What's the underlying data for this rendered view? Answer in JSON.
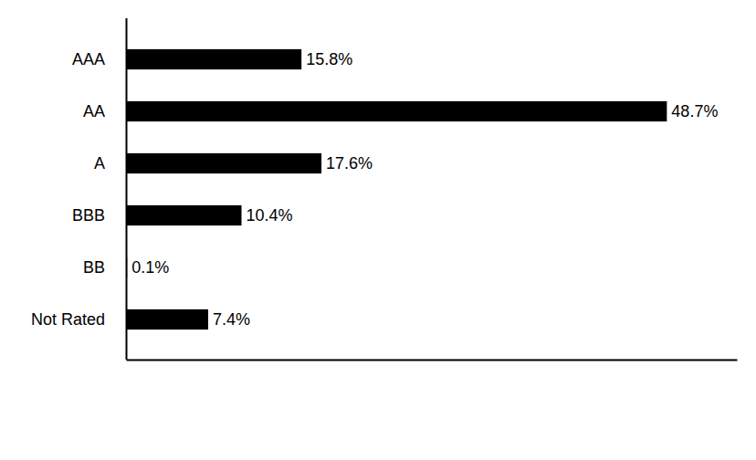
{
  "chart_data": {
    "type": "bar",
    "orientation": "horizontal",
    "categories": [
      "AAA",
      "AA",
      "A",
      "BBB",
      "BB",
      "Not Rated"
    ],
    "values": [
      15.8,
      48.7,
      17.6,
      10.4,
      0.1,
      7.4
    ],
    "value_labels": [
      "15.8%",
      "48.7%",
      "17.6%",
      "10.4%",
      "0.1%",
      "7.4%"
    ],
    "color": "#000000",
    "xlim": [
      0,
      55
    ],
    "data_labels": true,
    "tick_labels": "y",
    "grid": false
  }
}
